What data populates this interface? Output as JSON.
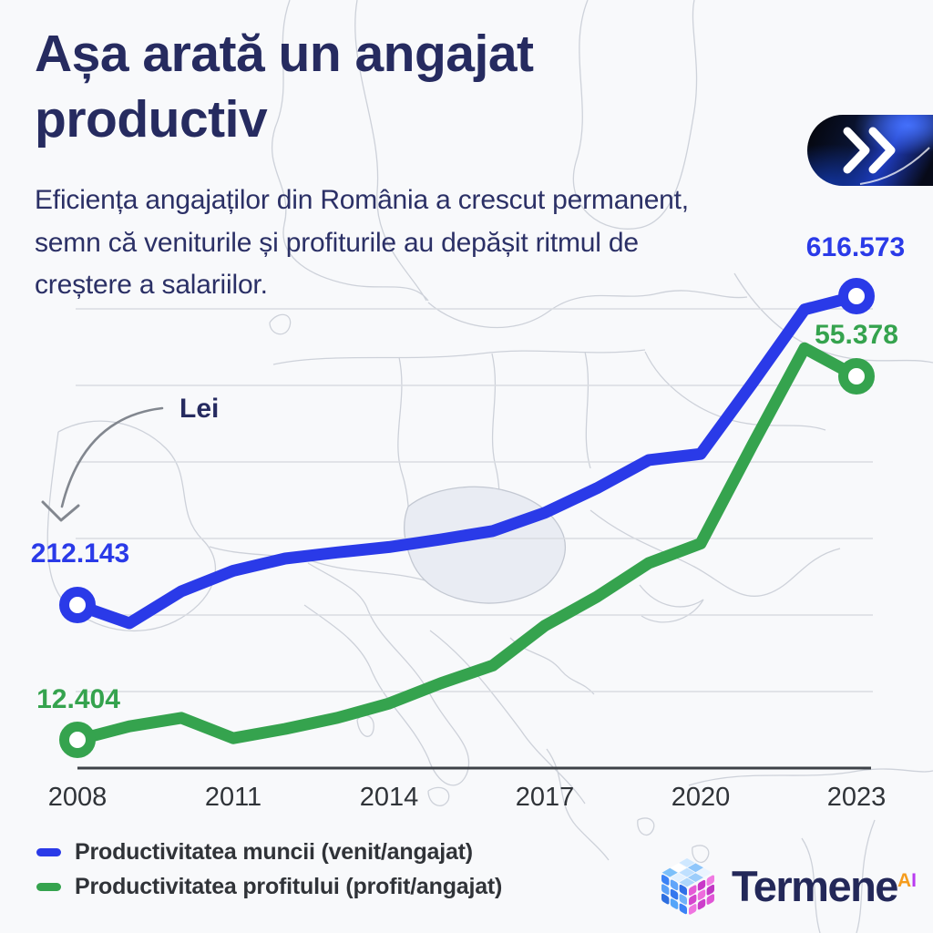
{
  "header": {
    "title": "Așa arată un angajat productiv",
    "subtitle": "Eficiența angajaților din România a crescut permanent, semn că veniturile și profiturile au depășit ritmul de creștere a salariilor."
  },
  "cta": {
    "icon": "double-chevron-right"
  },
  "annotation": {
    "currency_label": "Lei"
  },
  "chart_data": {
    "type": "line",
    "x": [
      2008,
      2009,
      2010,
      2011,
      2012,
      2013,
      2014,
      2015,
      2016,
      2017,
      2018,
      2019,
      2020,
      2021,
      2022,
      2023
    ],
    "x_ticks": [
      "2008",
      "2011",
      "2014",
      "2017",
      "2020",
      "2023"
    ],
    "unit": "Lei",
    "grid": true,
    "legend_position": "bottom-left",
    "series": [
      {
        "name": "Productivitatea muncii (venit/angajat)",
        "color": "#2a3ae8",
        "values": [
          212143,
          188300,
          230000,
          257000,
          273000,
          281000,
          288000,
          298000,
          309000,
          333000,
          365000,
          402000,
          410000,
          503000,
          599000,
          616573
        ],
        "first_label": "212.143",
        "last_label": "616.573"
      },
      {
        "name": "Productivitatea profitului (profit/angajat)",
        "color": "#35a34e",
        "values": [
          12404,
          14000,
          15000,
          12600,
          13700,
          15000,
          16700,
          19100,
          21200,
          25900,
          29300,
          33300,
          35600,
          47300,
          58700,
          55378
        ],
        "first_label": "12.404",
        "last_label": "55.378"
      }
    ]
  },
  "branding": {
    "wordmark": "Termene",
    "sup_a": "A",
    "sup_i": "I"
  }
}
